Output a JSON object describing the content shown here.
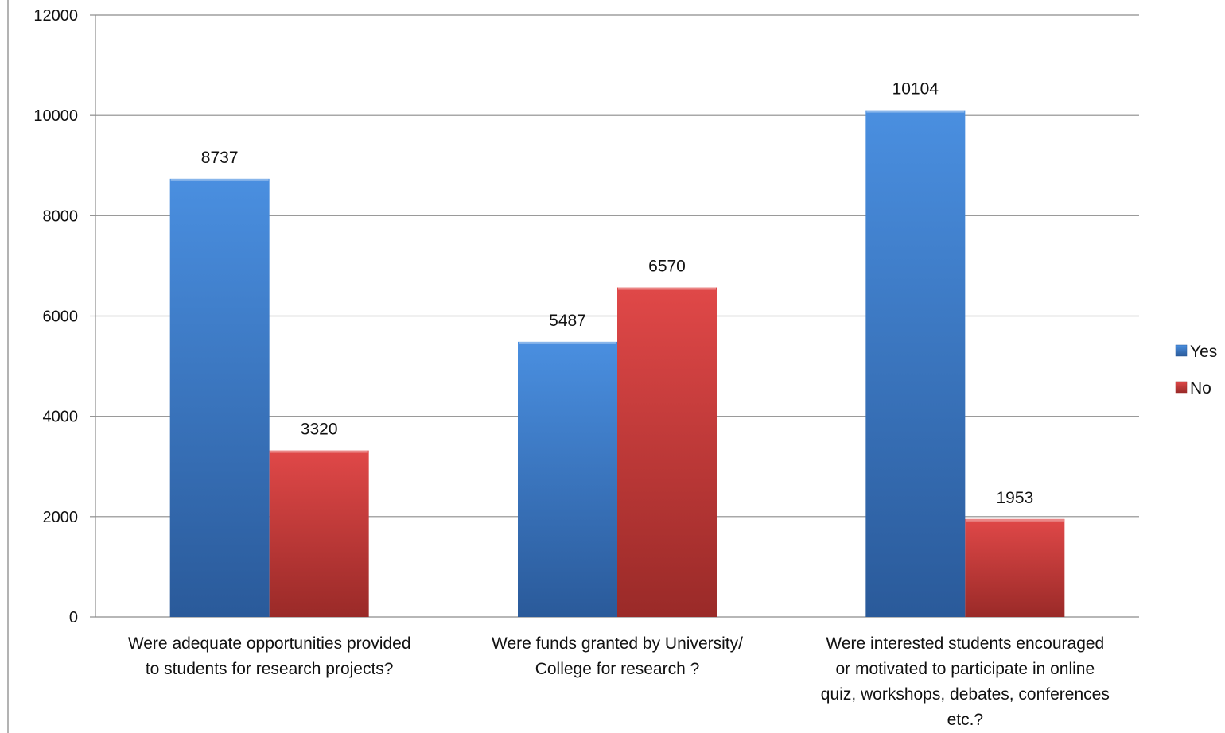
{
  "chart_data": {
    "type": "bar",
    "categories": [
      [
        "Were adequate opportunities provided",
        "to students for research projects?"
      ],
      [
        "Were funds granted by University/",
        "College for research ?"
      ],
      [
        "Were interested students encouraged",
        "or motivated to participate in online",
        "quiz, workshops, debates, conferences",
        "etc.?"
      ]
    ],
    "series": [
      {
        "name": "Yes",
        "values": [
          8737,
          5487,
          10104
        ],
        "color": "#3c7fd4",
        "color_dark": "#2a5a9a"
      },
      {
        "name": "No",
        "values": [
          3320,
          6570,
          1953
        ],
        "color": "#d94040",
        "color_dark": "#9a2a28"
      }
    ],
    "ylim": [
      0,
      12000
    ],
    "yticks": [
      "0",
      "2000",
      "4000",
      "6000",
      "8000",
      "10000",
      "12000"
    ],
    "grid": true,
    "legend_position": "right"
  }
}
